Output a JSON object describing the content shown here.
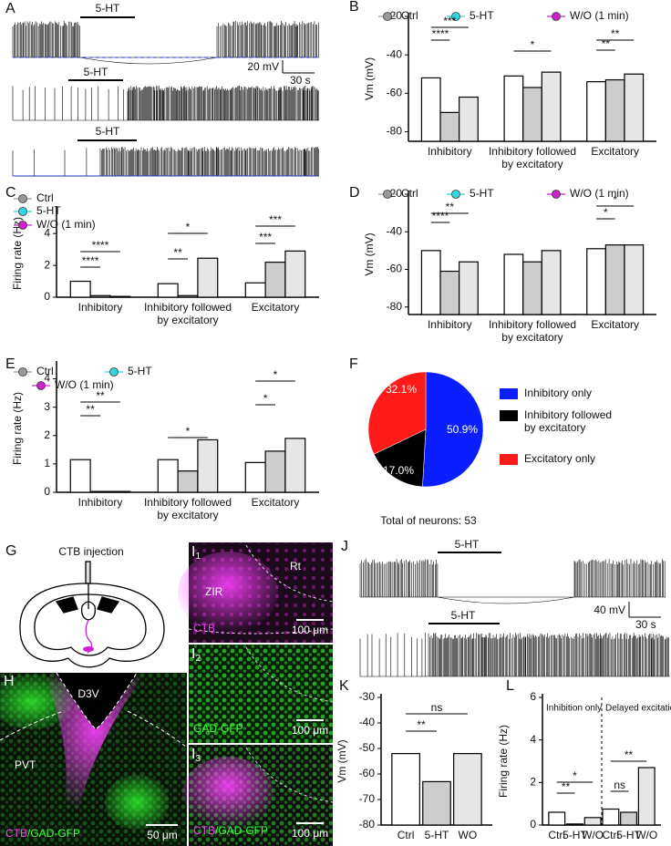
{
  "chart_data": [
    {
      "type": "bar",
      "panel": "B",
      "ylabel": "Vm (mV)",
      "categories": [
        "Inhibitory",
        "Inhibitory followed\nby excitatory",
        "Excitatory"
      ],
      "series": [
        {
          "name": "Ctrl",
          "color": "#9a9a9a",
          "values": [
            -52,
            -51,
            -54
          ]
        },
        {
          "name": "5-HT",
          "color": "#33d6dd",
          "values": [
            -70,
            -57,
            -53
          ]
        },
        {
          "name": "W/O (1 min)",
          "color": "#cc22cc",
          "values": [
            -62,
            -49,
            -50
          ]
        }
      ],
      "ylim": [
        -85,
        -20
      ],
      "yticks": [
        -20,
        -40,
        -60,
        -80
      ],
      "annotations": [
        "***",
        "****",
        "*",
        "**",
        "**"
      ]
    },
    {
      "type": "bar",
      "panel": "C",
      "ylabel": "Firing rate (Hz)",
      "categories": [
        "Inhibitory",
        "Inhibitory followed\nby excitatory",
        "Excitatory"
      ],
      "series": [
        {
          "name": "Ctrl",
          "color": "#9a9a9a",
          "values": [
            1.0,
            0.85,
            0.9
          ]
        },
        {
          "name": "5-HT",
          "color": "#33d6dd",
          "values": [
            0.1,
            0.1,
            2.2
          ]
        },
        {
          "name": "W/O (1 min)",
          "color": "#cc22cc",
          "values": [
            0.05,
            2.45,
            2.9
          ]
        }
      ],
      "ylim": [
        0,
        5.5
      ],
      "yticks": [
        0,
        2,
        4
      ],
      "annotations": [
        "****",
        "****",
        "*",
        "**",
        "***",
        "***"
      ]
    },
    {
      "type": "bar",
      "panel": "D",
      "ylabel": "Vm (mV)",
      "categories": [
        "Inhibitory",
        "Inhibitory followed\nby excitatory",
        "Excitatory"
      ],
      "series": [
        {
          "name": "Ctrl",
          "color": "#9a9a9a",
          "values": [
            -50,
            -52,
            -49
          ]
        },
        {
          "name": "5-HT",
          "color": "#33d6dd",
          "values": [
            -61,
            -56,
            -47
          ]
        },
        {
          "name": "W/O (1 min)",
          "color": "#cc22cc",
          "values": [
            -56,
            -50,
            -47
          ]
        }
      ],
      "ylim": [
        -84,
        -20
      ],
      "yticks": [
        -20,
        -40,
        -60,
        -80
      ],
      "annotations": [
        "**",
        "****",
        "*",
        "*"
      ]
    },
    {
      "type": "bar",
      "panel": "E",
      "ylabel": "Firing rate (Hz)",
      "categories": [
        "Inhibitory",
        "Inhibitory followed\nby excitatory",
        "Excitatory"
      ],
      "series": [
        {
          "name": "Ctrl",
          "color": "#9a9a9a",
          "values": [
            1.15,
            1.15,
            1.05
          ]
        },
        {
          "name": "5-HT",
          "color": "#33d6dd",
          "values": [
            0.03,
            0.75,
            1.45
          ]
        },
        {
          "name": "W/O (1 min)",
          "color": "#cc22cc",
          "values": [
            0.03,
            1.85,
            1.9
          ]
        }
      ],
      "ylim": [
        0,
        4.5
      ],
      "yticks": [
        0,
        1,
        2,
        3,
        4
      ],
      "annotations": [
        "**",
        "**",
        "*",
        "*",
        "*"
      ]
    },
    {
      "type": "pie",
      "panel": "F",
      "categories": [
        "Inhibitory only",
        "Inhibitory followed\nby excitatory",
        "Excitatory only"
      ],
      "values": [
        50.9,
        17.0,
        32.1
      ],
      "value_labels": [
        "50.9%",
        "17.0%",
        "32.1%"
      ],
      "colors": [
        "#0a1eff",
        "#000000",
        "#ff1a1a"
      ],
      "note": "Total of neurons: 53"
    },
    {
      "type": "bar",
      "panel": "K",
      "ylabel": "Vm (mV)",
      "categories": [
        "Ctrl",
        "5-HT",
        "WO"
      ],
      "values": [
        -52,
        -63,
        -52
      ],
      "ylim": [
        -80,
        -30
      ],
      "yticks": [
        -30,
        -40,
        -50,
        -60,
        -70,
        -80
      ],
      "annotations": [
        "ns",
        "**"
      ]
    },
    {
      "type": "bar",
      "panel": "L",
      "ylabel": "Firing rate (Hz)",
      "sections": [
        "Inhibition only",
        "Delayed excitation"
      ],
      "categories": [
        "Ctrl",
        "5-HT",
        "W/O",
        "Ctrl",
        "5-HT",
        "W/O"
      ],
      "values": [
        0.6,
        0.05,
        0.35,
        0.75,
        0.6,
        2.7
      ],
      "ylim": [
        0,
        6
      ],
      "yticks": [
        0,
        2,
        4,
        6
      ],
      "annotations": [
        "*",
        "**",
        "**",
        "ns"
      ]
    }
  ],
  "figure": {
    "traces_A": {
      "label": "A",
      "stim": [
        "5-HT",
        "5-HT",
        "5-HT"
      ],
      "scale_v": "20 mV",
      "scale_t": "30 s"
    },
    "panel_G": {
      "label": "G",
      "text": "CTB injection"
    },
    "panel_H": {
      "label": "H",
      "d3v": "D3V",
      "pvt": "PVT",
      "stain_1": "CTB",
      "stain_2": "/GAD-GFP",
      "scale": "50 μm"
    },
    "panel_I": {
      "label": "I",
      "subs": [
        "1",
        "2",
        "3"
      ],
      "rt": "Rt",
      "zir": "ZIR",
      "stain_1": "CTB",
      "stain_2": "GAD-GFP",
      "stain_3a": "CTB",
      "stain_3b": "/GAD-GFP",
      "scale": "100 μm"
    },
    "traces_J": {
      "label": "J",
      "stim": [
        "5-HT",
        "5-HT"
      ],
      "scale_v": "40 mV",
      "scale_t": "30 s"
    }
  }
}
